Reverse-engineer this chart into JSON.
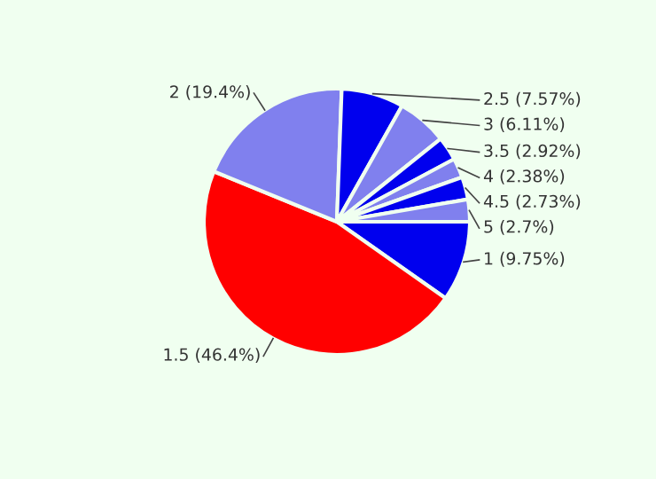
{
  "chart_data": {
    "type": "pie",
    "categories": [
      "1",
      "1.5",
      "2",
      "2.5",
      "3",
      "3.5",
      "4",
      "4.5",
      "5"
    ],
    "values": [
      9.75,
      46.4,
      19.4,
      7.57,
      6.11,
      2.92,
      2.38,
      2.73,
      2.7
    ],
    "value_labels": [
      "(9.75%)",
      "(46.4%)",
      "(19.4%)",
      "(7.57%)",
      "(6.11%)",
      "(2.92%)",
      "(2.38%)",
      "(2.73%)",
      "(2.7%)"
    ],
    "colors": [
      "#0000ee",
      "#ff0000",
      "#8080ee",
      "#0000ee",
      "#8080ee",
      "#0000ee",
      "#8080ee",
      "#0000ee",
      "#8080ee"
    ],
    "legend": false
  }
}
